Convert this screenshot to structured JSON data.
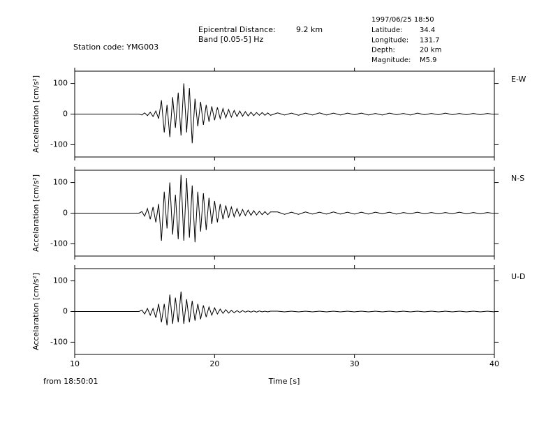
{
  "chart_data": {
    "type": "line",
    "station": "Station code: YMG003",
    "distance_label": "Epicentral Distance:",
    "distance_value": "9.2 km",
    "band": "Band [0.05-5] Hz",
    "event_time": "1997/06/25 18:50",
    "info": [
      [
        "Latitude:",
        "34.4"
      ],
      [
        "Longitude:",
        "131.7"
      ],
      [
        "Depth:",
        "20 km"
      ],
      [
        "Magnitude:",
        "M5.9"
      ]
    ],
    "xlabel": "Time [s]",
    "origin_note": "from 18:50:01",
    "ylabel": "Accelaration [cm/s²]",
    "xlim": [
      10,
      40
    ],
    "xticks": [
      10,
      20,
      30,
      40
    ],
    "ylim": [
      -140,
      140
    ],
    "yticks": [
      -100,
      0,
      100
    ],
    "x": [
      10,
      14.6,
      14.8,
      15.0,
      15.2,
      15.4,
      15.6,
      15.8,
      16.0,
      16.2,
      16.4,
      16.6,
      16.8,
      17.0,
      17.2,
      17.4,
      17.6,
      17.8,
      18.0,
      18.2,
      18.4,
      18.6,
      18.8,
      19.0,
      19.2,
      19.4,
      19.6,
      19.8,
      20.0,
      20.2,
      20.4,
      20.6,
      20.8,
      21.0,
      21.2,
      21.4,
      21.6,
      21.8,
      22.0,
      22.2,
      22.4,
      22.6,
      22.8,
      23.0,
      23.2,
      23.4,
      23.6,
      23.8,
      24.0,
      24.5,
      25,
      25.5,
      26,
      26.5,
      27,
      27.5,
      28,
      28.5,
      29,
      29.5,
      30,
      30.5,
      31,
      31.5,
      32,
      32.5,
      33,
      33.5,
      34,
      34.5,
      35,
      35.5,
      36,
      36.5,
      37,
      37.5,
      38,
      38.5,
      39,
      39.5,
      40
    ],
    "series": [
      {
        "name": "E-W",
        "color": "#000000",
        "values": [
          0,
          0,
          -3,
          4,
          -5,
          6,
          -8,
          10,
          -15,
          45,
          -60,
          30,
          -75,
          55,
          -45,
          70,
          -70,
          100,
          -60,
          85,
          -95,
          50,
          -40,
          40,
          -35,
          30,
          -25,
          25,
          -20,
          22,
          -15,
          18,
          -12,
          15,
          -10,
          12,
          -8,
          10,
          -7,
          8,
          -6,
          6,
          -5,
          5,
          -4,
          5,
          -4,
          4,
          -4,
          4,
          -3,
          3,
          -4,
          3,
          -3,
          4,
          -3,
          3,
          -3,
          3,
          -2,
          3,
          -3,
          2,
          -3,
          3,
          -2,
          2,
          -3,
          3,
          -2,
          2,
          -2,
          3,
          -2,
          2,
          -2,
          2,
          -2,
          2,
          -1
        ]
      },
      {
        "name": "N-S",
        "color": "#000000",
        "values": [
          0,
          0,
          5,
          -10,
          15,
          -20,
          20,
          -30,
          30,
          -90,
          70,
          -50,
          100,
          -70,
          60,
          -85,
          125,
          -90,
          115,
          -80,
          90,
          -95,
          70,
          -60,
          65,
          -55,
          50,
          -35,
          40,
          -30,
          30,
          -20,
          25,
          -15,
          20,
          -12,
          15,
          -10,
          12,
          -8,
          10,
          -7,
          8,
          -6,
          6,
          -5,
          5,
          -5,
          4,
          4,
          -4,
          3,
          -4,
          4,
          -3,
          3,
          -3,
          4,
          -3,
          3,
          -3,
          3,
          -3,
          3,
          -2,
          3,
          -3,
          2,
          -2,
          3,
          -2,
          2,
          -2,
          2,
          -2,
          3,
          -2,
          2,
          -2,
          2,
          -1
        ]
      },
      {
        "name": "U-D",
        "color": "#000000",
        "values": [
          0,
          0,
          5,
          -8,
          10,
          -12,
          10,
          -20,
          25,
          -35,
          25,
          -45,
          55,
          -40,
          45,
          -35,
          65,
          -40,
          40,
          -35,
          35,
          -30,
          25,
          -25,
          20,
          -18,
          15,
          -12,
          12,
          -8,
          8,
          -6,
          6,
          -5,
          4,
          -4,
          3,
          -3,
          3,
          -2,
          2,
          -2,
          2,
          -2,
          2,
          -1,
          1,
          -1,
          1,
          1,
          -1,
          1,
          -1,
          1,
          -1,
          1,
          -1,
          1,
          -1,
          1,
          -1,
          1,
          -1,
          1,
          -1,
          1,
          -1,
          1,
          -1,
          1,
          -1,
          1,
          -1,
          1,
          -1,
          1,
          -1,
          1,
          -1,
          1,
          -1
        ]
      }
    ]
  }
}
